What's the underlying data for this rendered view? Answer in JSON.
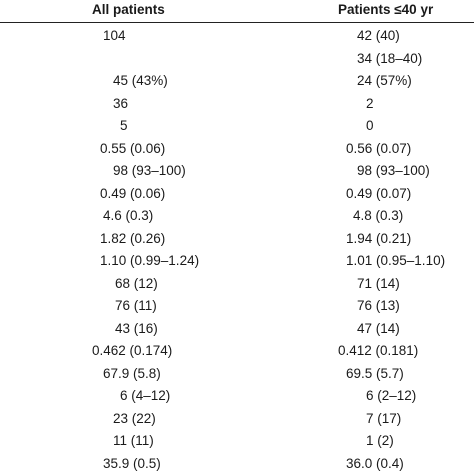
{
  "table": {
    "header": [
      "All patients",
      "Patients ≤40 yr"
    ],
    "rows": [
      [
        "104",
        "42 (40)"
      ],
      [
        null,
        "34 (18–40)"
      ],
      [
        "45 (43%)",
        "24 (57%)"
      ],
      [
        "36",
        "2"
      ],
      [
        "5",
        "0"
      ],
      [
        "0.55 (0.06)",
        "0.56 (0.07)"
      ],
      [
        "98 (93–100)",
        "98 (93–100)"
      ],
      [
        "0.49 (0.06)",
        "0.49 (0.07)"
      ],
      [
        "4.6 (0.3)",
        "4.8 (0.3)"
      ],
      [
        "1.82 (0.26)",
        "1.94 (0.21)"
      ],
      [
        "1.10 (0.99–1.24)",
        "1.01 (0.95–1.10)"
      ],
      [
        "68 (12)",
        "71 (14)"
      ],
      [
        "76 (11)",
        "76 (13)"
      ],
      [
        "43 (16)",
        "47 (14)"
      ],
      [
        "0.462 (0.174)",
        "0.412 (0.181)"
      ],
      [
        "67.9 (5.8)",
        "69.5 (5.7)"
      ],
      [
        "6 (4–12)",
        "6 (2–12)"
      ],
      [
        "23 (22)",
        "7 (17)"
      ],
      [
        "11 (11)",
        "1 (2)"
      ],
      [
        "35.9 (0.5)",
        "36.0 (0.4)"
      ]
    ]
  }
}
